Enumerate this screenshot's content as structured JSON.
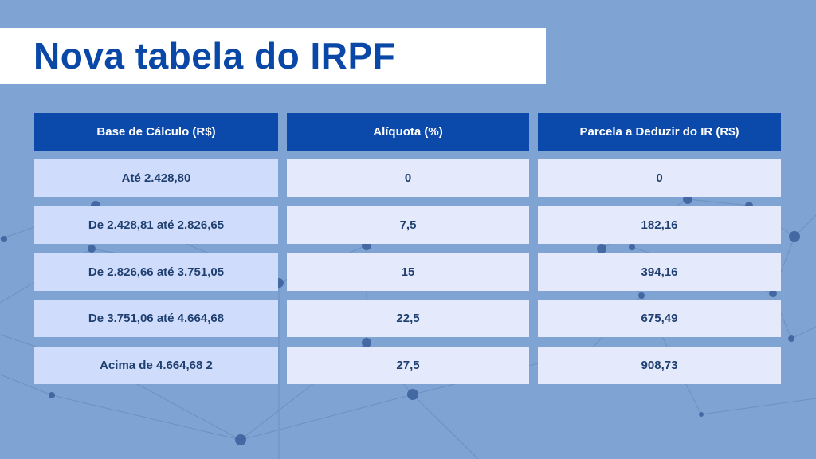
{
  "title": "Nova tabela do IRPF",
  "table": {
    "headers": [
      "Base de Cálculo (R$)",
      "Alíquota (%)",
      "Parcela a Deduzir do IR (R$)"
    ],
    "rows": [
      [
        "Até 2.428,80",
        "0",
        "0"
      ],
      [
        "De 2.428,81 até 2.826,65",
        "7,5",
        "182,16"
      ],
      [
        "De 2.826,66 até 3.751,05",
        "15",
        "394,16"
      ],
      [
        "De 3.751,06 até 4.664,68",
        "22,5",
        "675,49"
      ],
      [
        "Acima de 4.664,68 2",
        "27,5",
        "908,73"
      ]
    ]
  },
  "colors": {
    "background": "#7fa4d3",
    "title_text": "#0a48a8",
    "header_fill": "#0b4aaa",
    "first_column_fill": "#cfdcfb",
    "cell_fill": "#e4eafc",
    "cell_text": "#1e3f6f"
  }
}
